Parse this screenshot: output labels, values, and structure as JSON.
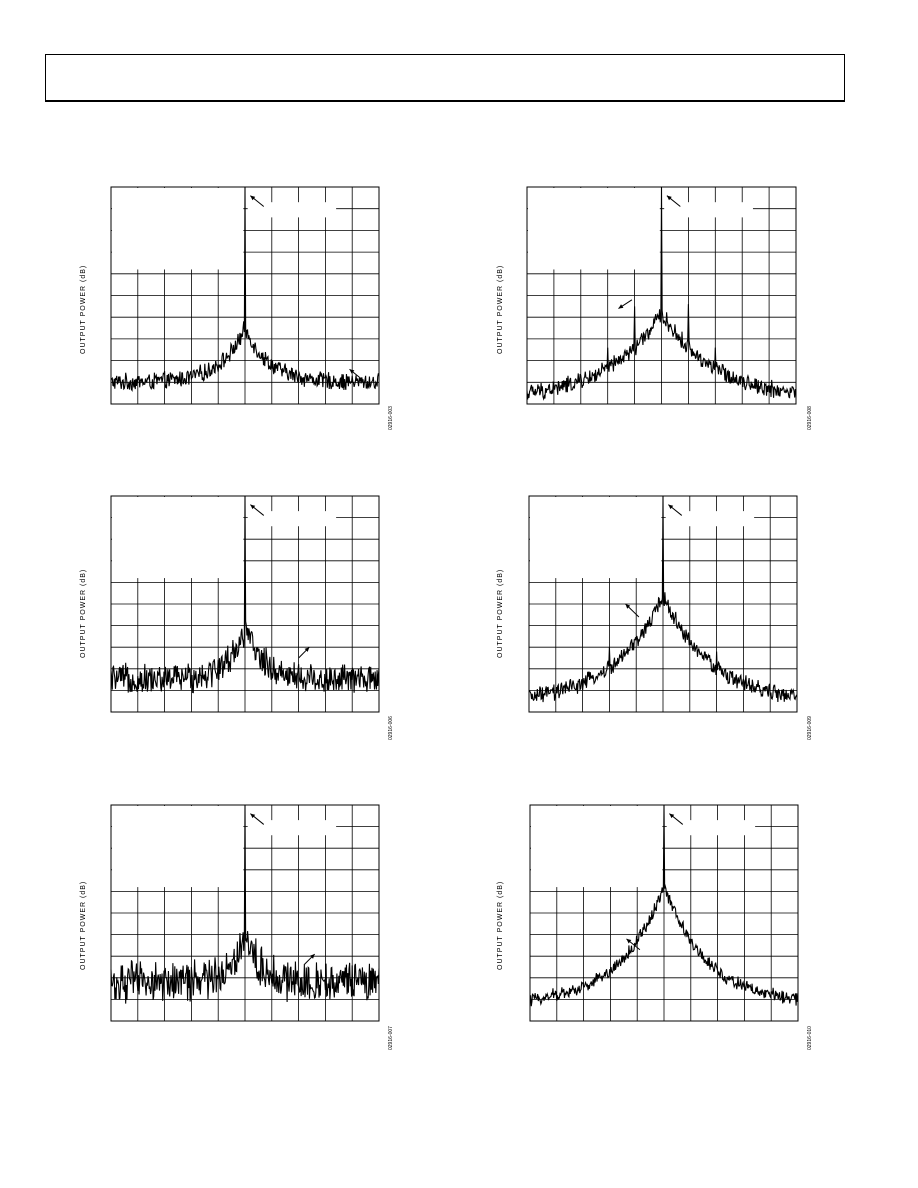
{
  "header": {
    "text": ""
  },
  "ylabel": "OUTPUT POWER (dB)",
  "chart_data": [
    {
      "id": "p1",
      "type": "line",
      "figure_id": "02916-003",
      "ylabel": "OUTPUT POWER (dB)",
      "grid": true,
      "x_divisions": 10,
      "y_divisions": 10,
      "noise_floor_div": 1.0,
      "noise_amp": 0.25,
      "skirt_peak": 2.5,
      "skirt_width": 0.9,
      "carrier_top": 10,
      "spurs": [],
      "arrows": [
        [
          5.2,
          9.6,
          5.7,
          9.1
        ],
        [
          8.9,
          1.6,
          9.4,
          1.1
        ]
      ]
    },
    {
      "id": "p2",
      "type": "line",
      "figure_id": "02916-008",
      "ylabel": "OUTPUT POWER (dB)",
      "grid": true,
      "x_divisions": 10,
      "y_divisions": 10,
      "noise_floor_div": 0.5,
      "noise_amp": 0.25,
      "skirt_peak": 4.0,
      "skirt_width": 2.0,
      "carrier_top": 10,
      "spurs": [
        [
          2,
          1.3
        ],
        [
          3,
          2.6
        ],
        [
          4,
          4.5
        ],
        [
          6,
          4.6
        ],
        [
          7,
          2.6
        ],
        [
          8,
          1.2
        ]
      ],
      "arrows": [
        [
          5.2,
          9.6,
          5.7,
          9.1
        ],
        [
          3.4,
          4.4,
          3.9,
          4.8
        ]
      ]
    },
    {
      "id": "p3",
      "type": "line",
      "figure_id": "02916-006",
      "ylabel": "OUTPUT POWER (dB)",
      "grid": true,
      "x_divisions": 10,
      "y_divisions": 10,
      "noise_floor_div": 1.5,
      "noise_amp": 0.45,
      "skirt_peak": 2.3,
      "skirt_width": 0.7,
      "carrier_top": 10,
      "spurs": [],
      "arrows": [
        [
          5.2,
          9.6,
          5.7,
          9.1
        ],
        [
          7.4,
          3.0,
          7.0,
          2.5
        ]
      ]
    },
    {
      "id": "p4",
      "type": "line",
      "figure_id": "02916-009",
      "ylabel": "OUTPUT POWER (dB)",
      "grid": true,
      "x_divisions": 10,
      "y_divisions": 10,
      "noise_floor_div": 0.7,
      "noise_amp": 0.25,
      "skirt_peak": 5.0,
      "skirt_width": 1.8,
      "carrier_top": 10,
      "spurs": [
        [
          3,
          3.0
        ],
        [
          7,
          2.8
        ]
      ],
      "arrows": [
        [
          5.2,
          9.6,
          5.7,
          9.1
        ],
        [
          3.6,
          5.0,
          4.1,
          4.4
        ]
      ]
    },
    {
      "id": "p5",
      "type": "line",
      "figure_id": "02916-007",
      "ylabel": "OUTPUT POWER (dB)",
      "grid": true,
      "x_divisions": 10,
      "y_divisions": 10,
      "noise_floor_div": 1.8,
      "noise_amp": 0.6,
      "skirt_peak": 2.4,
      "skirt_width": 0.5,
      "carrier_top": 10,
      "spurs": [],
      "arrows": [
        [
          5.2,
          9.6,
          5.7,
          9.1
        ],
        [
          7.6,
          3.1,
          7.2,
          2.6
        ]
      ]
    },
    {
      "id": "p6",
      "type": "line",
      "figure_id": "02916-010",
      "ylabel": "OUTPUT POWER (dB)",
      "grid": true,
      "x_divisions": 10,
      "y_divisions": 10,
      "noise_floor_div": 1.0,
      "noise_amp": 0.2,
      "skirt_peak": 5.5,
      "skirt_width": 1.6,
      "carrier_top": 10,
      "spurs": [],
      "arrows": [
        [
          5.2,
          9.6,
          5.7,
          9.1
        ],
        [
          3.6,
          3.8,
          4.1,
          3.3
        ]
      ]
    }
  ]
}
